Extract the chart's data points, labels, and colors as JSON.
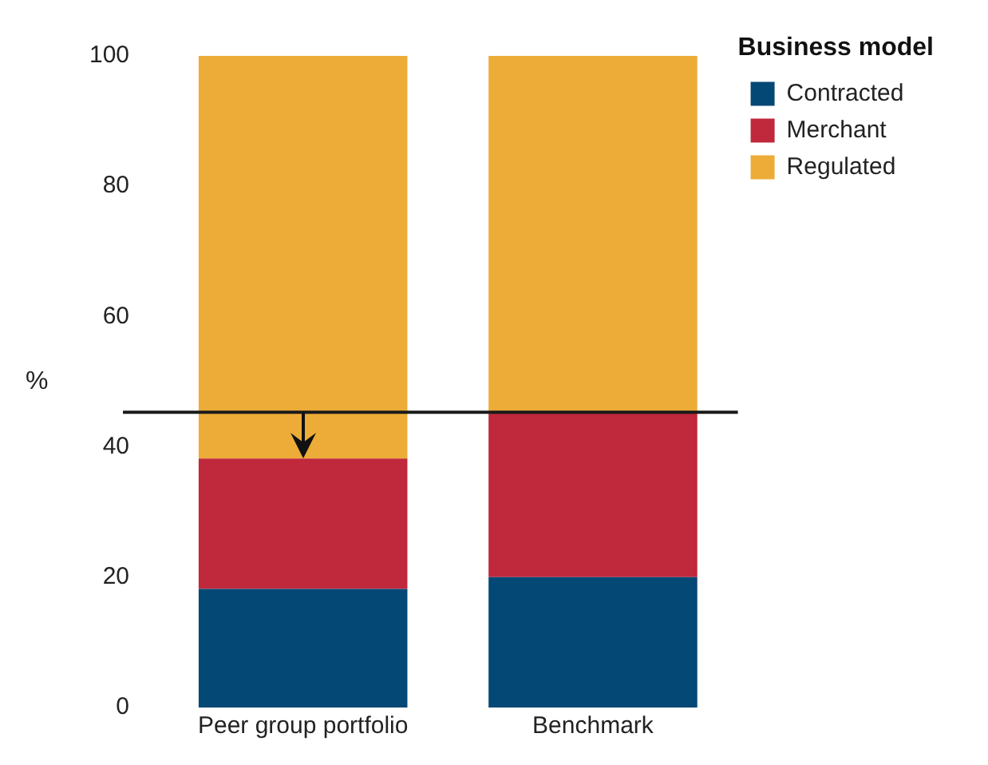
{
  "chart_data": {
    "type": "bar",
    "stacked": true,
    "categories": [
      "Peer group portfolio",
      "Benchmark"
    ],
    "series": [
      {
        "name": "Contracted",
        "color": "#044875",
        "values": [
          18.2,
          20
        ]
      },
      {
        "name": "Merchant",
        "color": "#c0283b",
        "values": [
          20,
          25.3
        ]
      },
      {
        "name": "Regulated",
        "color": "#ecac37",
        "values": [
          61.8,
          54.7
        ]
      }
    ],
    "ylabel": "%",
    "legend_title": "Business model",
    "legend": "top right",
    "grid": false,
    "ylim": [
      0,
      100
    ],
    "yticks": [
      0,
      20,
      40,
      60,
      80,
      100
    ],
    "ref_lines": [
      {
        "axis": "y",
        "value": 45.3,
        "color": "#1a1a1a"
      }
    ]
  }
}
